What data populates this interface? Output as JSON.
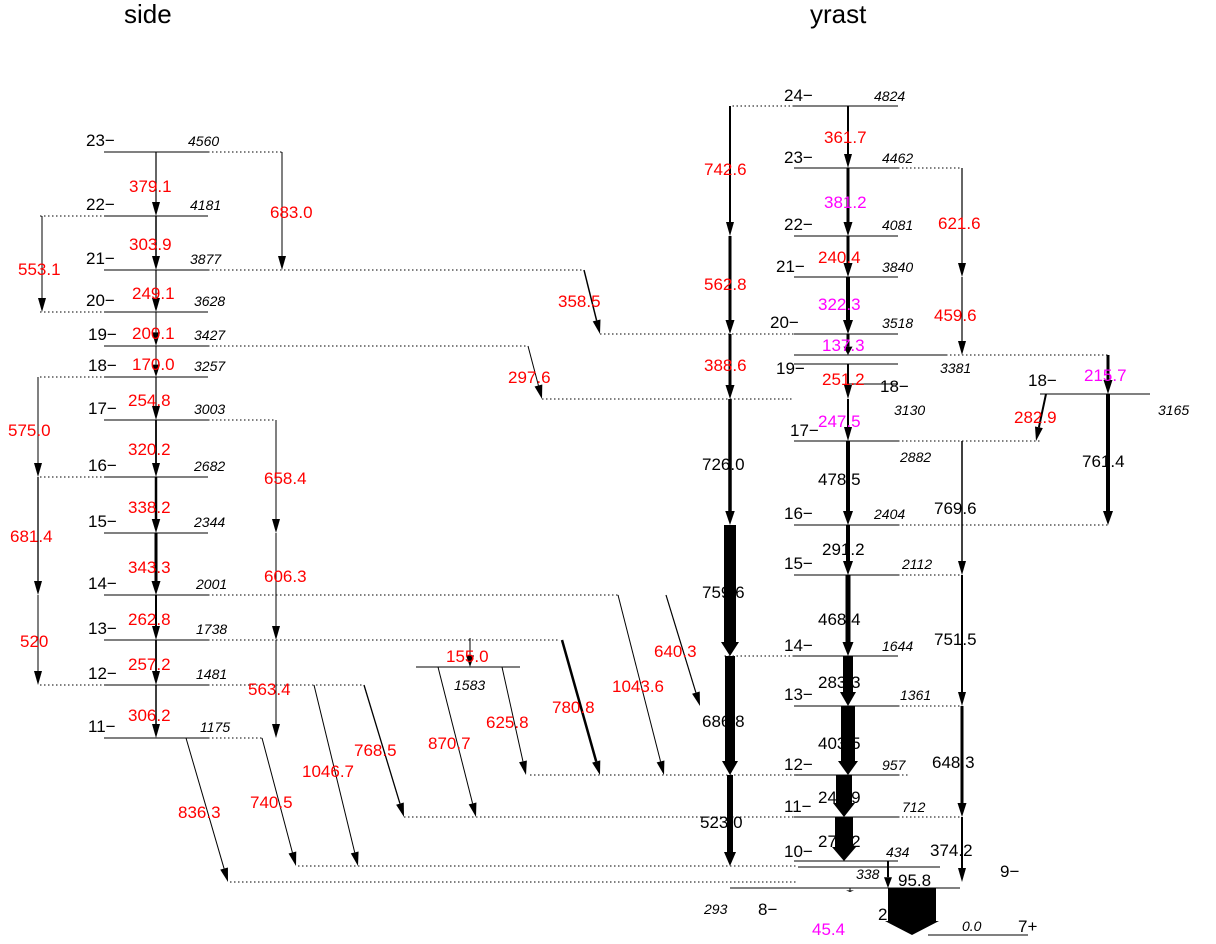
{
  "titles": {
    "side": "side",
    "yrast": "yrast"
  },
  "levels": [
    {
      "id": "s23",
      "spin": "23−",
      "energy": "4560"
    },
    {
      "id": "s22",
      "spin": "22−",
      "energy": "4181"
    },
    {
      "id": "s21",
      "spin": "21−",
      "energy": "3877"
    },
    {
      "id": "s20",
      "spin": "20−",
      "energy": "3628"
    },
    {
      "id": "s19",
      "spin": "19−",
      "energy": "3427"
    },
    {
      "id": "s18",
      "spin": "18−",
      "energy": "3257"
    },
    {
      "id": "s17",
      "spin": "17−",
      "energy": "3003"
    },
    {
      "id": "s16",
      "spin": "16−",
      "energy": "2682"
    },
    {
      "id": "s15",
      "spin": "15−",
      "energy": "2344"
    },
    {
      "id": "s14",
      "spin": "14−",
      "energy": "2001"
    },
    {
      "id": "s13",
      "spin": "13−",
      "energy": "1738"
    },
    {
      "id": "s12",
      "spin": "12−",
      "energy": "1481"
    },
    {
      "id": "s11",
      "spin": "11−",
      "energy": "1175"
    },
    {
      "id": "m1583",
      "spin": "",
      "energy": "1583"
    },
    {
      "id": "y24",
      "spin": "24−",
      "energy": "4824"
    },
    {
      "id": "y23",
      "spin": "23−",
      "energy": "4462"
    },
    {
      "id": "y22",
      "spin": "22−",
      "energy": "4081"
    },
    {
      "id": "y21",
      "spin": "21−",
      "energy": "3840"
    },
    {
      "id": "y20",
      "spin": "20−",
      "energy": "3518"
    },
    {
      "id": "y3381",
      "spin": "",
      "energy": "3381"
    },
    {
      "id": "y19",
      "spin": "19−",
      "energy": ""
    },
    {
      "id": "y18",
      "spin": "18−",
      "energy": "3130"
    },
    {
      "id": "r18",
      "spin": "18−",
      "energy": "3165"
    },
    {
      "id": "y17",
      "spin": "17−",
      "energy": "2882"
    },
    {
      "id": "y16",
      "spin": "16−",
      "energy": "2404"
    },
    {
      "id": "y15",
      "spin": "15−",
      "energy": "2112"
    },
    {
      "id": "y14",
      "spin": "14−",
      "energy": "1644"
    },
    {
      "id": "y13",
      "spin": "13−",
      "energy": "1361"
    },
    {
      "id": "y12",
      "spin": "12−",
      "energy": "957"
    },
    {
      "id": "y11",
      "spin": "11−",
      "energy": "712"
    },
    {
      "id": "y10",
      "spin": "10−",
      "energy": "434"
    },
    {
      "id": "y9",
      "spin": "9−",
      "energy": "338"
    },
    {
      "id": "y8",
      "spin": "8−",
      "energy": "293"
    },
    {
      "id": "y7",
      "spin": "7+",
      "energy": "0.0"
    }
  ],
  "transitions": [
    {
      "label": "379.1",
      "color": "red"
    },
    {
      "label": "303.9",
      "color": "red"
    },
    {
      "label": "249.1",
      "color": "red"
    },
    {
      "label": "200.1",
      "color": "red"
    },
    {
      "label": "170.0",
      "color": "red"
    },
    {
      "label": "254.8",
      "color": "red"
    },
    {
      "label": "320.2",
      "color": "red"
    },
    {
      "label": "338.2",
      "color": "red"
    },
    {
      "label": "343.3",
      "color": "red"
    },
    {
      "label": "262.8",
      "color": "red"
    },
    {
      "label": "257.2",
      "color": "red"
    },
    {
      "label": "306.2",
      "color": "red"
    },
    {
      "label": "683.0",
      "color": "red"
    },
    {
      "label": "553.1",
      "color": "red"
    },
    {
      "label": "575.0",
      "color": "red"
    },
    {
      "label": "681.4",
      "color": "red"
    },
    {
      "label": "520",
      "color": "red"
    },
    {
      "label": "658.4",
      "color": "red"
    },
    {
      "label": "606.3",
      "color": "red"
    },
    {
      "label": "563.4",
      "color": "red"
    },
    {
      "label": "358.5",
      "color": "red"
    },
    {
      "label": "297.6",
      "color": "red"
    },
    {
      "label": "155.0",
      "color": "red"
    },
    {
      "label": "836.3",
      "color": "red"
    },
    {
      "label": "740.5",
      "color": "red"
    },
    {
      "label": "1046.7",
      "color": "red"
    },
    {
      "label": "768.5",
      "color": "red"
    },
    {
      "label": "870.7",
      "color": "red"
    },
    {
      "label": "625.8",
      "color": "red"
    },
    {
      "label": "780.8",
      "color": "red"
    },
    {
      "label": "1043.6",
      "color": "red"
    },
    {
      "label": "640.3",
      "color": "red"
    },
    {
      "label": "742.6",
      "color": "red"
    },
    {
      "label": "562.8",
      "color": "red"
    },
    {
      "label": "388.6",
      "color": "red"
    },
    {
      "label": "361.7",
      "color": "red"
    },
    {
      "label": "240.4",
      "color": "red"
    },
    {
      "label": "251.2",
      "color": "red"
    },
    {
      "label": "621.6",
      "color": "red"
    },
    {
      "label": "459.6",
      "color": "red"
    },
    {
      "label": "282.9",
      "color": "red"
    },
    {
      "label": "381.2",
      "color": "magenta"
    },
    {
      "label": "322.3",
      "color": "magenta"
    },
    {
      "label": "137.3",
      "color": "magenta"
    },
    {
      "label": "247.5",
      "color": "magenta"
    },
    {
      "label": "215.7",
      "color": "magenta"
    },
    {
      "label": "45.4",
      "color": "magenta"
    },
    {
      "label": "726.0",
      "color": "black"
    },
    {
      "label": "759.6",
      "color": "black"
    },
    {
      "label": "686.8",
      "color": "black"
    },
    {
      "label": "523.0",
      "color": "black"
    },
    {
      "label": "478.5",
      "color": "black"
    },
    {
      "label": "291.2",
      "color": "black"
    },
    {
      "label": "468.4",
      "color": "black"
    },
    {
      "label": "283.3",
      "color": "black"
    },
    {
      "label": "403.5",
      "color": "black"
    },
    {
      "label": "244.9",
      "color": "black"
    },
    {
      "label": "278.2",
      "color": "black"
    },
    {
      "label": "95.8",
      "color": "black"
    },
    {
      "label": "293.0",
      "color": "black"
    },
    {
      "label": "769.6",
      "color": "black"
    },
    {
      "label": "751.5",
      "color": "black"
    },
    {
      "label": "648.3",
      "color": "black"
    },
    {
      "label": "374.2",
      "color": "black"
    },
    {
      "label": "761.4",
      "color": "black"
    }
  ],
  "colors": {
    "red": "#ff0000",
    "magenta": "#ff00ff",
    "black": "#000000"
  }
}
